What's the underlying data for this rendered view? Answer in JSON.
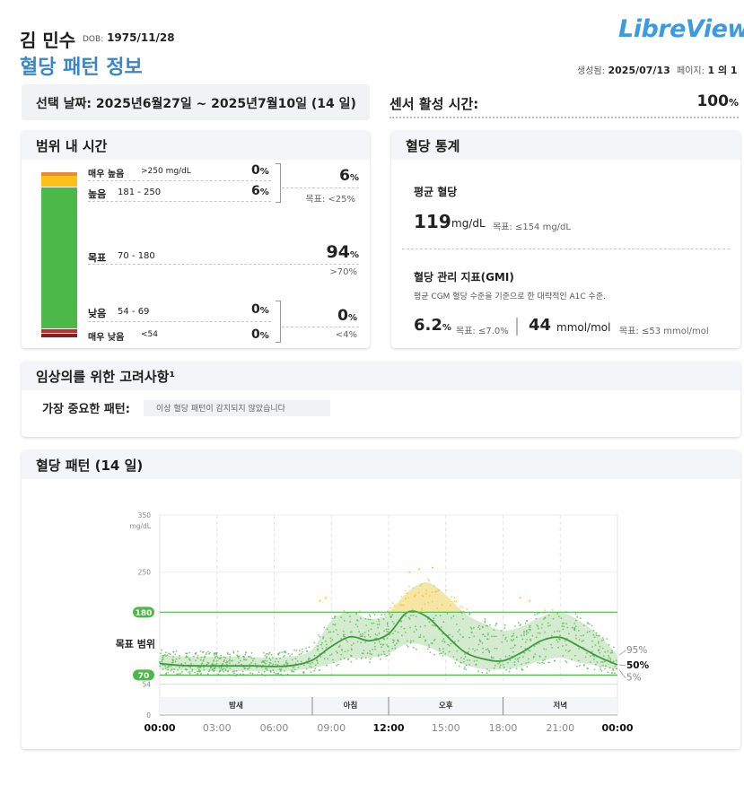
{
  "header": {
    "patient_name": "김 민수",
    "dob_label": "DOB:",
    "dob": "1975/11/28",
    "report_title": "혈당 패턴 정보",
    "logo": "LibreView",
    "generated_label": "생성됨:",
    "generated": "2025/07/13",
    "page_label": "페이지:",
    "page_value": "1 의 1"
  },
  "date_range": {
    "label": "선택 날짜: 2025년6월27일 ~ 2025년7월10일 (14 일)"
  },
  "sensor": {
    "label": "센서 활성 시간:",
    "value": "100",
    "unit": "%"
  },
  "tir": {
    "title": "범위 내 시간",
    "rows": {
      "very_high": {
        "label": "매우 높음",
        "range": ">250 mg/dL",
        "pct": "0",
        "value": 0
      },
      "high": {
        "label": "높음",
        "range": "181 - 250",
        "pct": "6",
        "value": 6
      },
      "target": {
        "label": "목표",
        "range": "70 - 180",
        "pct": "94",
        "value": 94
      },
      "low": {
        "label": "낮음",
        "range": "54 - 69",
        "pct": "0",
        "value": 0
      },
      "very_low": {
        "label": "매우 낮음",
        "range": "<54",
        "pct": "0",
        "value": 0
      }
    },
    "above": {
      "pct": "6",
      "goal": "목표: <25%"
    },
    "in_range_goal": ">70%",
    "below": {
      "pct": "0",
      "goal": "<4%"
    },
    "pct_sign": "%",
    "colors": {
      "very_high": "#e8893b",
      "high": "#fcc117",
      "target": "#4cb848",
      "low": "#c0312b",
      "very_low": "#8a1c1c"
    }
  },
  "stats": {
    "title": "혈당 통계",
    "avg_label": "평균 혈당",
    "avg_value": "119",
    "avg_unit": "mg/dL",
    "avg_goal": "목표: ≤154 mg/dL",
    "gmi_label": "혈당 관리 지표(GMI)",
    "gmi_desc": "평균 CGM 혈당 수준을 기준으로 한 대략적인 A1C 수준.",
    "gmi_pct": "6.2",
    "gmi_pct_sign": "%",
    "gmi_pct_goal": "목표: ≤7.0%",
    "gmi_mmol": "44",
    "gmi_mmol_unit": "mmol/mol",
    "gmi_mmol_goal": "목표: ≤53 mmol/mol"
  },
  "clinical": {
    "title": "임상의를 위한 고려사항¹",
    "pattern_label": "가장 중요한 패턴:",
    "pattern_value": "이상 혈당 패턴이 감지되지 않았습니다"
  },
  "chart_data": {
    "type": "area",
    "title": "혈당 패턴 (14 일)",
    "y_unit": "mg/dL",
    "ylim": [
      0,
      350
    ],
    "y_ticks": [
      0,
      54,
      70,
      180,
      250,
      350
    ],
    "x_ticks": [
      "00:00",
      "03:00",
      "06:00",
      "09:00",
      "12:00",
      "15:00",
      "18:00",
      "21:00",
      "00:00"
    ],
    "x_hours": [
      0,
      3,
      6,
      9,
      12,
      15,
      18,
      21,
      24
    ],
    "target_range": [
      70,
      180
    ],
    "target_label": "목표 범위",
    "periods": [
      {
        "label": "밤새",
        "start": 0,
        "end": 8
      },
      {
        "label": "아침",
        "start": 8,
        "end": 12
      },
      {
        "label": "오후",
        "start": 12,
        "end": 18
      },
      {
        "label": "저녁",
        "start": 18,
        "end": 24
      }
    ],
    "percentile_labels": [
      "95%",
      "50%",
      "5%"
    ],
    "x_hour": [
      0,
      1,
      2,
      3,
      4,
      5,
      6,
      7,
      8,
      9,
      10,
      11,
      12,
      13,
      14,
      15,
      16,
      17,
      18,
      19,
      20,
      21,
      22,
      23,
      24
    ],
    "series": [
      {
        "name": "95%",
        "values": [
          105,
          103,
          102,
          102,
          102,
          101,
          101,
          103,
          115,
          165,
          180,
          168,
          178,
          215,
          232,
          210,
          178,
          160,
          148,
          155,
          172,
          180,
          165,
          140,
          105
        ]
      },
      {
        "name": "50%",
        "values": [
          90,
          87,
          86,
          86,
          86,
          86,
          85,
          87,
          96,
          120,
          137,
          130,
          142,
          180,
          172,
          140,
          110,
          98,
          95,
          110,
          130,
          136,
          120,
          102,
          88
        ]
      },
      {
        "name": "5%",
        "values": [
          80,
          78,
          78,
          77,
          77,
          77,
          76,
          78,
          82,
          90,
          100,
          100,
          108,
          125,
          120,
          104,
          88,
          80,
          80,
          85,
          95,
          100,
          92,
          86,
          79
        ]
      }
    ],
    "colors": {
      "band": "#cde8c7",
      "median": "#3d9a3d",
      "high_points": "#fcc117",
      "points": "#5cb85c",
      "target_line": "#4cb848"
    }
  }
}
